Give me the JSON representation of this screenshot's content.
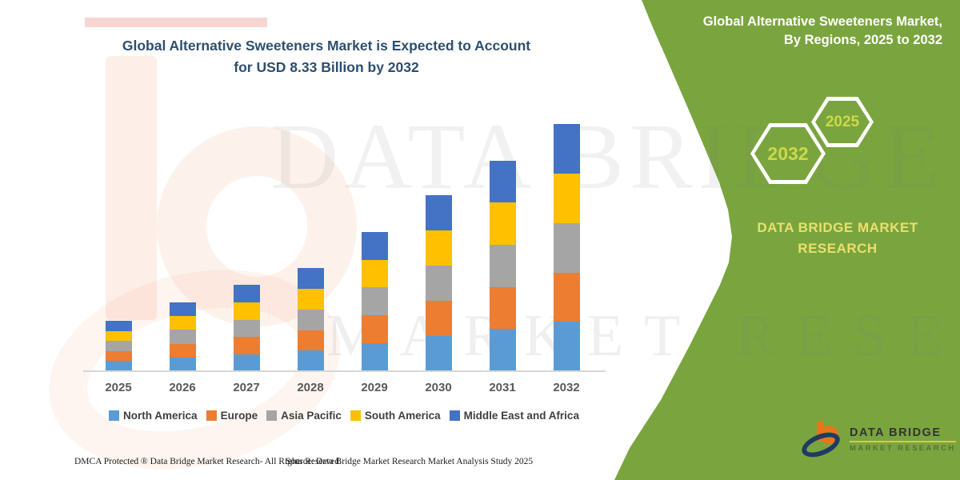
{
  "title": {
    "line1": "Global Alternative Sweeteners Market is Expected to Account",
    "line2": "for USD 8.33 Billion by 2032",
    "color": "#2d4f6e"
  },
  "side_panel": {
    "bg_color": "#7aa53e",
    "heading_line1": "Global Alternative Sweeteners Market,",
    "heading_line2": "By Regions, 2025 to 2032",
    "hexagon_big_label": "2032",
    "hexagon_small_label": "2025",
    "hexagon_text_color": "#cbd94b",
    "brand_line1": "DATA BRIDGE MARKET",
    "brand_line2": "RESEARCH",
    "brand_text_color": "#e9e06e",
    "logo_title": "DATA BRIDGE",
    "logo_subtitle": "MARKET RESEARCH"
  },
  "watermark": {
    "line1": "DATA BRIDGE",
    "line2": "MARKET RESEARCH"
  },
  "chart_data": {
    "type": "bar",
    "stacked": true,
    "title": "Global Alternative Sweeteners Market is Expected to Account for USD 8.33 Billion by 2032",
    "unit": "USD Billion",
    "categories": [
      "2025",
      "2026",
      "2027",
      "2028",
      "2029",
      "2030",
      "2031",
      "2032"
    ],
    "series": [
      {
        "name": "North America",
        "color": "#5B9BD5",
        "values": [
          0.34,
          0.47,
          0.58,
          0.69,
          0.94,
          1.19,
          1.42,
          1.67
        ]
      },
      {
        "name": "Europe",
        "color": "#ED7D31",
        "values": [
          0.34,
          0.46,
          0.58,
          0.69,
          0.94,
          1.18,
          1.42,
          1.66
        ]
      },
      {
        "name": "Asia Pacific",
        "color": "#A5A5A5",
        "values": [
          0.34,
          0.46,
          0.58,
          0.7,
          0.94,
          1.19,
          1.42,
          1.67
        ]
      },
      {
        "name": "South America",
        "color": "#FFC000",
        "values": [
          0.34,
          0.46,
          0.58,
          0.69,
          0.94,
          1.18,
          1.42,
          1.66
        ]
      },
      {
        "name": "Middle East and Africa",
        "color": "#4472C4",
        "values": [
          0.34,
          0.47,
          0.59,
          0.7,
          0.94,
          1.19,
          1.42,
          1.67
        ]
      }
    ],
    "totals": [
      1.7,
      2.32,
      2.91,
      3.47,
      4.7,
      5.93,
      7.1,
      8.33
    ],
    "ylim": [
      0,
      8.6
    ],
    "grid": false,
    "axis_labels_shown": false,
    "legend_position": "bottom"
  },
  "footer": {
    "left": "DMCA Protected ® Data Bridge Market Research- All Rights Reserved.",
    "right": "Source: Data Bridge Market Research Market Analysis Study 2025"
  }
}
